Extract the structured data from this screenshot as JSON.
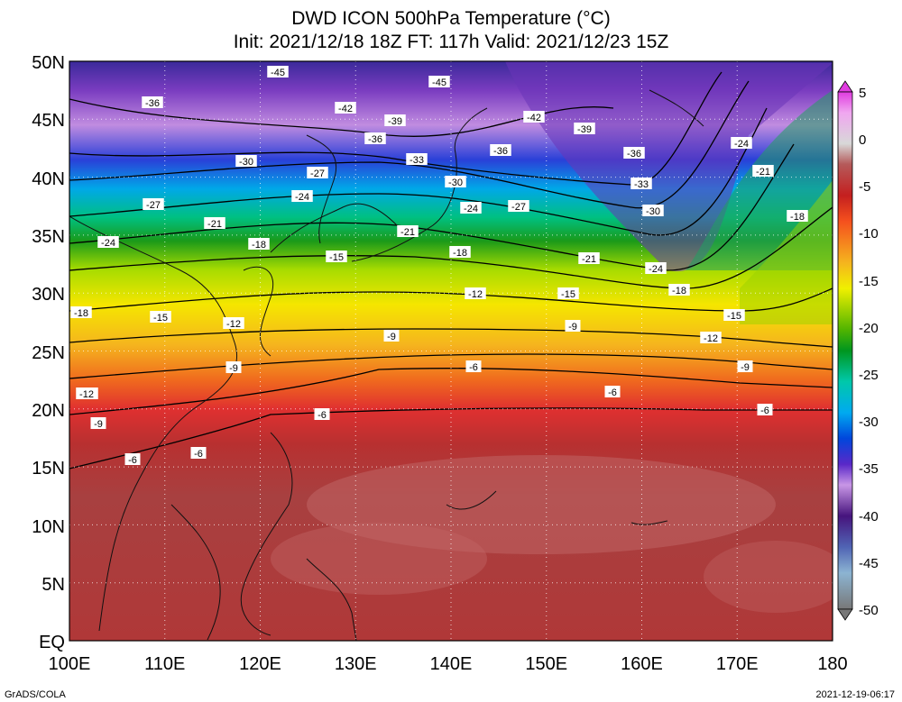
{
  "header": {
    "line1": "DWD ICON 500hPa Temperature (°C)",
    "line2": "Init: 2021/12/18 18Z  FT: 117h  Valid: 2021/12/23 15Z"
  },
  "axes": {
    "lat_labels": [
      "50N",
      "45N",
      "40N",
      "35N",
      "30N",
      "25N",
      "20N",
      "15N",
      "10N",
      "5N",
      "EQ"
    ],
    "lon_labels": [
      "100E",
      "110E",
      "120E",
      "130E",
      "140E",
      "150E",
      "160E",
      "170E",
      "180"
    ]
  },
  "colorbar": {
    "unit": "°C",
    "tick_labels": [
      "5",
      "0",
      "-5",
      "-10",
      "-15",
      "-20",
      "-25",
      "-30",
      "-35",
      "-40",
      "-45",
      "-50"
    ],
    "colors": [
      "#e03ce0",
      "#f07af0",
      "#f0a6f0",
      "#d8d8d8",
      "#c88e8e",
      "#b55a5a",
      "#a03535",
      "#c41f1f",
      "#e03030",
      "#f5501e",
      "#f5801e",
      "#f5a81e",
      "#f5d21e",
      "#f0f000",
      "#c8e600",
      "#96d200",
      "#50b400",
      "#00961e",
      "#00aa64",
      "#00c8aa",
      "#00d2dc",
      "#00aaf0",
      "#0078f0",
      "#0046dc",
      "#1e1eb4",
      "#5a28c8",
      "#8c46d2",
      "#aa78dc",
      "#c896e6",
      "#8c50c8",
      "#6428a0",
      "#46147d",
      "#3c3c96",
      "#5064b4",
      "#6496c8",
      "#8cb4d2",
      "#a0a0a0",
      "#787878"
    ]
  },
  "contour_labels": [
    "-45",
    "-45",
    "-36",
    "-42",
    "-39",
    "-42",
    "-39",
    "-36",
    "-36",
    "-36",
    "-30",
    "-33",
    "-33",
    "-30",
    "-24",
    "-27",
    "-24",
    "-30",
    "-27",
    "-21",
    "-27",
    "-24",
    "-21",
    "-24",
    "-21",
    "-18",
    "-15",
    "-18",
    "-21",
    "-24",
    "-18",
    "-18",
    "-12",
    "-15",
    "-15",
    "-12",
    "-18",
    "-15",
    "-12",
    "-9",
    "-9",
    "-12",
    "-9",
    "-6",
    "-9",
    "-6",
    "-12",
    "-6",
    "-6",
    "-9",
    "-6",
    "-6"
  ],
  "footer": {
    "credit": "GrADS/COLA",
    "timestamp": "2021-12-19-06:17"
  }
}
